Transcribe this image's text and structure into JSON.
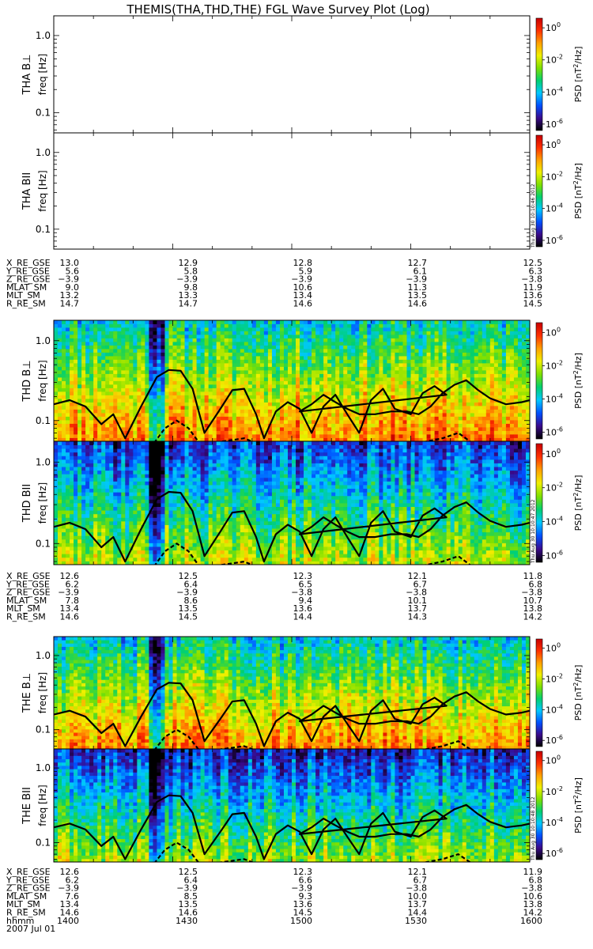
{
  "title": "THEMIS(THA,THD,THE) FGL Wave Survey Plot (Log)",
  "chart_data": {
    "type": "heatmap",
    "x_unit": "hhmm",
    "x_range_hhmm": [
      1400,
      1600
    ],
    "freq_unit": "Hz",
    "freq_range": [
      0.055,
      1.8
    ],
    "colorbar": {
      "label": "PSD [nT²/Hz]",
      "label_main": "PSD [nT",
      "label_sup": "2",
      "label_tail": "/Hz]",
      "ticks": [
        {
          "base": "10",
          "exp": "0",
          "value": 1
        },
        {
          "base": "10",
          "exp": "-2",
          "value": 0.01
        },
        {
          "base": "10",
          "exp": "-4",
          "value": 0.0001
        },
        {
          "base": "10",
          "exp": "-6",
          "value": 1e-06
        }
      ],
      "colors": [
        "#000000",
        "#3a0a8c",
        "#0050ff",
        "#00c8ff",
        "#00d070",
        "#7ee000",
        "#f0f000",
        "#ffa000",
        "#ff3000",
        "#c80000"
      ]
    },
    "panels": [
      {
        "id": "tha-bperp",
        "label": "THA B⊥",
        "ylabel": "freq [Hz]",
        "has_data": false,
        "freq_ticks": [
          {
            "label": "1.0",
            "f": 1.0
          },
          {
            "label": "0.1",
            "f": 0.1
          }
        ]
      },
      {
        "id": "tha-bpar",
        "label": "THA BII",
        "ylabel": "freq [Hz]",
        "has_data": false,
        "freq_ticks": [
          {
            "label": "1.0",
            "f": 1.0
          },
          {
            "label": "0.1",
            "f": 0.1
          }
        ],
        "stamp": "Thu Aug 30 10:10:46 2012"
      },
      {
        "id": "thd-bperp",
        "label": "THD B⊥",
        "ylabel": "freq [Hz]",
        "has_data": true,
        "seed": 11,
        "level": 0.82,
        "freq_ticks": [
          {
            "label": "1.0",
            "f": 1.0
          },
          {
            "label": "0.1",
            "f": 0.1
          }
        ]
      },
      {
        "id": "thd-bpar",
        "label": "THD BII",
        "ylabel": "freq [Hz]",
        "has_data": true,
        "seed": 29,
        "level": 0.62,
        "freq_ticks": [
          {
            "label": "1.0",
            "f": 1.0
          },
          {
            "label": "0.1",
            "f": 0.1
          }
        ],
        "stamp": "Thu Aug 30 10:10:47 2012"
      },
      {
        "id": "the-bperp",
        "label": "THE B⊥",
        "ylabel": "freq [Hz]",
        "has_data": true,
        "seed": 47,
        "level": 0.8,
        "freq_ticks": [
          {
            "label": "1.0",
            "f": 1.0
          },
          {
            "label": "0.1",
            "f": 0.1
          }
        ]
      },
      {
        "id": "the-bpar",
        "label": "THE BII",
        "ylabel": "freq [Hz]",
        "has_data": true,
        "seed": 63,
        "level": 0.6,
        "freq_ticks": [
          {
            "label": "1.0",
            "f": 1.0
          },
          {
            "label": "0.1",
            "f": 0.1
          }
        ],
        "stamp": "Thu Aug 30 10:10:48 2012"
      }
    ],
    "lines": {
      "solid_freq_hz": [
        [
          1400,
          0.16
        ],
        [
          1404,
          0.18
        ],
        [
          1408,
          0.15
        ],
        [
          1412,
          0.09
        ],
        [
          1415,
          0.12
        ],
        [
          1418,
          0.06
        ],
        [
          1422,
          0.15
        ],
        [
          1426,
          0.35
        ],
        [
          1429,
          0.43
        ],
        [
          1432,
          0.42
        ],
        [
          1435,
          0.25
        ],
        [
          1438,
          0.07
        ],
        [
          1442,
          0.14
        ],
        [
          1445,
          0.24
        ],
        [
          1448,
          0.25
        ],
        [
          1451,
          0.12
        ],
        [
          1453,
          0.06
        ],
        [
          1456,
          0.13
        ],
        [
          1459,
          0.17
        ],
        [
          1462,
          0.14
        ],
        [
          1465,
          0.07
        ],
        [
          1468,
          0.15
        ],
        [
          1471,
          0.21
        ],
        [
          1474,
          0.12
        ],
        [
          1477,
          0.07
        ],
        [
          1480,
          0.18
        ],
        [
          1483,
          0.25
        ],
        [
          1486,
          0.14
        ],
        [
          1490,
          0.12
        ],
        [
          1493,
          0.22
        ],
        [
          1496,
          0.27
        ],
        [
          1499,
          0.21
        ],
        [
          1502,
          0.13
        ],
        [
          1505,
          0.16
        ],
        [
          1508,
          0.21
        ],
        [
          1511,
          0.17
        ],
        [
          1514,
          0.14
        ],
        [
          1517,
          0.12
        ],
        [
          1521,
          0.12
        ],
        [
          1525,
          0.13
        ],
        [
          1529,
          0.13
        ],
        [
          1532,
          0.12
        ],
        [
          1535,
          0.15
        ],
        [
          1538,
          0.22
        ],
        [
          1541,
          0.28
        ],
        [
          1544,
          0.32
        ],
        [
          1547,
          0.24
        ],
        [
          1550,
          0.19
        ],
        [
          1554,
          0.16
        ],
        [
          1558,
          0.17
        ],
        [
          1562,
          0.19
        ],
        [
          1566,
          0.21
        ],
        [
          1570,
          0.24
        ],
        [
          1574,
          0.23
        ],
        [
          1578,
          0.21
        ],
        [
          1582,
          0.23
        ],
        [
          1586,
          0.25
        ],
        [
          1590,
          0.22
        ],
        [
          1595,
          0.2
        ],
        [
          1600,
          0.2
        ]
      ],
      "dashed_freq_hz": [
        [
          1400,
          0.05
        ],
        [
          1425,
          0.05
        ],
        [
          1428,
          0.08
        ],
        [
          1431,
          0.1
        ],
        [
          1434,
          0.08
        ],
        [
          1437,
          0.05
        ],
        [
          1448,
          0.06
        ],
        [
          1452,
          0.05
        ],
        [
          1530,
          0.05
        ],
        [
          1538,
          0.06
        ],
        [
          1542,
          0.07
        ],
        [
          1546,
          0.05
        ],
        [
          1600,
          0.05
        ]
      ]
    }
  },
  "orbit_blocks": [
    {
      "labels": [
        "X_RE_GSE",
        "Y_RE_GSE",
        "Z_RE_GSE",
        "MLAT_SM",
        "MLT_SM",
        "R_RE_SM"
      ],
      "columns": [
        [
          "13.0",
          "5.6",
          "−3.9",
          "9.0",
          "13.2",
          "14.7"
        ],
        [
          "12.9",
          "5.8",
          "−3.9",
          "9.8",
          "13.3",
          "14.7"
        ],
        [
          "12.8",
          "5.9",
          "−3.9",
          "10.6",
          "13.4",
          "14.6"
        ],
        [
          "12.7",
          "6.1",
          "−3.9",
          "11.3",
          "13.5",
          "14.6"
        ],
        [
          "12.5",
          "6.3",
          "−3.8",
          "11.9",
          "13.6",
          "14.5"
        ]
      ]
    },
    {
      "labels": [
        "X_RE_GSE",
        "Y_RE_GSE",
        "Z_RE_GSE",
        "MLAT_SM",
        "MLT_SM",
        "R_RE_SM"
      ],
      "columns": [
        [
          "12.6",
          "6.2",
          "−3.9",
          "7.8",
          "13.4",
          "14.6"
        ],
        [
          "12.5",
          "6.4",
          "−3.9",
          "8.6",
          "13.5",
          "14.5"
        ],
        [
          "12.3",
          "6.5",
          "−3.8",
          "9.4",
          "13.6",
          "14.4"
        ],
        [
          "12.1",
          "6.7",
          "−3.8",
          "10.1",
          "13.7",
          "14.3"
        ],
        [
          "11.8",
          "6.8",
          "−3.8",
          "10.7",
          "13.8",
          "14.2"
        ]
      ]
    },
    {
      "labels": [
        "X_RE_GSE",
        "Y_RE_GSE",
        "Z_RE_GSE",
        "MLAT_SM",
        "MLT_SM",
        "R_RE_SM",
        "hhmm",
        "2007 Jul 01"
      ],
      "columns": [
        [
          "12.6",
          "6.2",
          "−3.9",
          "7.6",
          "13.4",
          "14.6",
          "1400"
        ],
        [
          "12.5",
          "6.4",
          "−3.9",
          "8.5",
          "13.5",
          "14.6",
          "1430"
        ],
        [
          "12.3",
          "6.6",
          "−3.9",
          "9.3",
          "13.6",
          "14.5",
          "1500"
        ],
        [
          "12.1",
          "6.7",
          "−3.8",
          "10.0",
          "13.7",
          "14.4",
          "1530"
        ],
        [
          "11.9",
          "6.8",
          "−3.8",
          "10.6",
          "13.8",
          "14.2",
          "1600"
        ]
      ]
    }
  ]
}
